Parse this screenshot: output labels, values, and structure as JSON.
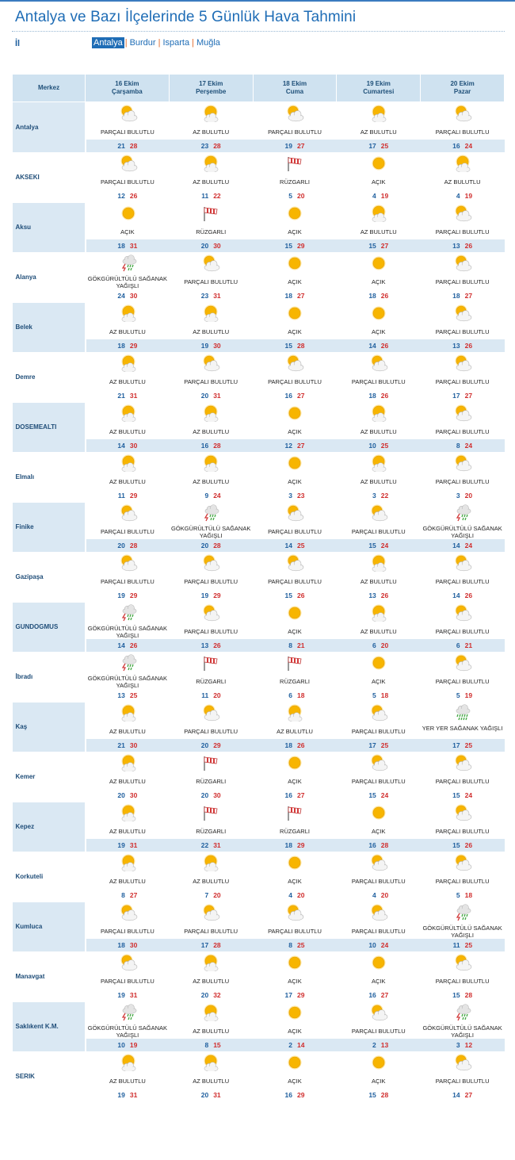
{
  "page_title": "Antalya ve Bazı İlçelerinde 5 Günlük Hava Tahmini",
  "il_label": "İl",
  "provinces": [
    {
      "label": "Antalya",
      "active": true
    },
    {
      "label": "Burdur",
      "active": false
    },
    {
      "label": "Isparta",
      "active": false
    },
    {
      "label": "Muğla",
      "active": false
    }
  ],
  "table_header": {
    "merkez": "Merkez",
    "days": [
      {
        "date": "16 Ekim",
        "weekday": "Çarşamba"
      },
      {
        "date": "17 Ekim",
        "weekday": "Perşembe"
      },
      {
        "date": "18 Ekim",
        "weekday": "Cuma"
      },
      {
        "date": "19 Ekim",
        "weekday": "Cumartesi"
      },
      {
        "date": "20 Ekim",
        "weekday": "Pazar"
      }
    ]
  },
  "colors": {
    "accent": "#1f6db6",
    "min_temp": "#1f5f9e",
    "max_temp": "#d02d2d",
    "row_shade": "#dae8f3",
    "header": "#cfe2f0"
  },
  "rows": [
    {
      "name": "Antalya",
      "days": [
        {
          "icon": "partly-cloudy-icon",
          "desc": "PARÇALI BULUTLU",
          "min": "21",
          "max": "28"
        },
        {
          "icon": "few-clouds-icon",
          "desc": "AZ BULUTLU",
          "min": "23",
          "max": "28"
        },
        {
          "icon": "partly-cloudy-icon",
          "desc": "PARÇALI BULUTLU",
          "min": "19",
          "max": "27"
        },
        {
          "icon": "few-clouds-icon",
          "desc": "AZ BULUTLU",
          "min": "17",
          "max": "25"
        },
        {
          "icon": "partly-cloudy-icon",
          "desc": "PARÇALI BULUTLU",
          "min": "16",
          "max": "24"
        }
      ]
    },
    {
      "name": "AKSEKI",
      "days": [
        {
          "icon": "partly-cloudy-icon",
          "desc": "PARÇALI BULUTLU",
          "min": "12",
          "max": "26"
        },
        {
          "icon": "few-clouds-icon",
          "desc": "AZ BULUTLU",
          "min": "11",
          "max": "22"
        },
        {
          "icon": "windsock-icon",
          "desc": "RÜZGARLI",
          "min": "5",
          "max": "20"
        },
        {
          "icon": "sun-icon",
          "desc": "AÇIK",
          "min": "4",
          "max": "19"
        },
        {
          "icon": "few-clouds-icon",
          "desc": "AZ BULUTLU",
          "min": "4",
          "max": "19"
        }
      ]
    },
    {
      "name": "Aksu",
      "days": [
        {
          "icon": "sun-icon",
          "desc": "AÇIK",
          "min": "18",
          "max": "31"
        },
        {
          "icon": "windsock-icon",
          "desc": "RÜZGARLI",
          "min": "20",
          "max": "30"
        },
        {
          "icon": "sun-icon",
          "desc": "AÇIK",
          "min": "15",
          "max": "29"
        },
        {
          "icon": "few-clouds-icon",
          "desc": "AZ BULUTLU",
          "min": "15",
          "max": "27"
        },
        {
          "icon": "partly-cloudy-icon",
          "desc": "PARÇALI BULUTLU",
          "min": "13",
          "max": "26"
        }
      ]
    },
    {
      "name": "Alanya",
      "days": [
        {
          "icon": "thunder-shower-icon",
          "desc": "GÖKGÜRÜLTÜLÜ SAĞANAK YAĞIŞLI",
          "min": "24",
          "max": "30"
        },
        {
          "icon": "partly-cloudy-icon",
          "desc": "PARÇALI BULUTLU",
          "min": "23",
          "max": "31"
        },
        {
          "icon": "sun-icon",
          "desc": "AÇIK",
          "min": "18",
          "max": "27"
        },
        {
          "icon": "sun-icon",
          "desc": "AÇIK",
          "min": "18",
          "max": "26"
        },
        {
          "icon": "partly-cloudy-icon",
          "desc": "PARÇALI BULUTLU",
          "min": "18",
          "max": "27"
        }
      ]
    },
    {
      "name": "Belek",
      "days": [
        {
          "icon": "few-clouds-icon",
          "desc": "AZ BULUTLU",
          "min": "18",
          "max": "29"
        },
        {
          "icon": "few-clouds-icon",
          "desc": "AZ BULUTLU",
          "min": "19",
          "max": "30"
        },
        {
          "icon": "sun-icon",
          "desc": "AÇIK",
          "min": "15",
          "max": "28"
        },
        {
          "icon": "sun-icon",
          "desc": "AÇIK",
          "min": "14",
          "max": "26"
        },
        {
          "icon": "partly-cloudy-icon",
          "desc": "PARÇALI BULUTLU",
          "min": "13",
          "max": "26"
        }
      ]
    },
    {
      "name": "Demre",
      "days": [
        {
          "icon": "few-clouds-icon",
          "desc": "AZ BULUTLU",
          "min": "21",
          "max": "31"
        },
        {
          "icon": "partly-cloudy-icon",
          "desc": "PARÇALI BULUTLU",
          "min": "20",
          "max": "31"
        },
        {
          "icon": "partly-cloudy-icon",
          "desc": "PARÇALI BULUTLU",
          "min": "16",
          "max": "27"
        },
        {
          "icon": "partly-cloudy-icon",
          "desc": "PARÇALI BULUTLU",
          "min": "18",
          "max": "26"
        },
        {
          "icon": "partly-cloudy-icon",
          "desc": "PARÇALI BULUTLU",
          "min": "17",
          "max": "27"
        }
      ]
    },
    {
      "name": "DOSEMEALTI",
      "days": [
        {
          "icon": "few-clouds-icon",
          "desc": "AZ BULUTLU",
          "min": "14",
          "max": "30"
        },
        {
          "icon": "few-clouds-icon",
          "desc": "AZ BULUTLU",
          "min": "16",
          "max": "28"
        },
        {
          "icon": "sun-icon",
          "desc": "AÇIK",
          "min": "12",
          "max": "27"
        },
        {
          "icon": "few-clouds-icon",
          "desc": "AZ BULUTLU",
          "min": "10",
          "max": "25"
        },
        {
          "icon": "partly-cloudy-icon",
          "desc": "PARÇALI BULUTLU",
          "min": "8",
          "max": "24"
        }
      ]
    },
    {
      "name": "Elmalı",
      "days": [
        {
          "icon": "few-clouds-icon",
          "desc": "AZ BULUTLU",
          "min": "11",
          "max": "29"
        },
        {
          "icon": "few-clouds-icon",
          "desc": "AZ BULUTLU",
          "min": "9",
          "max": "24"
        },
        {
          "icon": "sun-icon",
          "desc": "AÇIK",
          "min": "3",
          "max": "23"
        },
        {
          "icon": "few-clouds-icon",
          "desc": "AZ BULUTLU",
          "min": "3",
          "max": "22"
        },
        {
          "icon": "partly-cloudy-icon",
          "desc": "PARÇALI BULUTLU",
          "min": "3",
          "max": "20"
        }
      ]
    },
    {
      "name": "Finike",
      "days": [
        {
          "icon": "partly-cloudy-icon",
          "desc": "PARÇALI BULUTLU",
          "min": "20",
          "max": "28"
        },
        {
          "icon": "thunder-shower-icon",
          "desc": "GÖKGÜRÜLTÜLÜ SAĞANAK YAĞIŞLI",
          "min": "20",
          "max": "28"
        },
        {
          "icon": "partly-cloudy-icon",
          "desc": "PARÇALI BULUTLU",
          "min": "14",
          "max": "25"
        },
        {
          "icon": "partly-cloudy-icon",
          "desc": "PARÇALI BULUTLU",
          "min": "15",
          "max": "24"
        },
        {
          "icon": "thunder-shower-icon",
          "desc": "GÖKGÜRÜLTÜLÜ SAĞANAK YAĞIŞLI",
          "min": "14",
          "max": "24"
        }
      ]
    },
    {
      "name": "Gazipaşa",
      "days": [
        {
          "icon": "partly-cloudy-icon",
          "desc": "PARÇALI BULUTLU",
          "min": "19",
          "max": "29"
        },
        {
          "icon": "partly-cloudy-icon",
          "desc": "PARÇALI BULUTLU",
          "min": "19",
          "max": "29"
        },
        {
          "icon": "partly-cloudy-icon",
          "desc": "PARÇALI BULUTLU",
          "min": "15",
          "max": "26"
        },
        {
          "icon": "few-clouds-icon",
          "desc": "AZ BULUTLU",
          "min": "13",
          "max": "26"
        },
        {
          "icon": "partly-cloudy-icon",
          "desc": "PARÇALI BULUTLU",
          "min": "14",
          "max": "26"
        }
      ]
    },
    {
      "name": "GUNDOGMUS",
      "days": [
        {
          "icon": "thunder-shower-icon",
          "desc": "GÖKGÜRÜLTÜLÜ SAĞANAK YAĞIŞLI",
          "min": "14",
          "max": "26"
        },
        {
          "icon": "partly-cloudy-icon",
          "desc": "PARÇALI BULUTLU",
          "min": "13",
          "max": "26"
        },
        {
          "icon": "sun-icon",
          "desc": "AÇIK",
          "min": "8",
          "max": "21"
        },
        {
          "icon": "few-clouds-icon",
          "desc": "AZ BULUTLU",
          "min": "6",
          "max": "20"
        },
        {
          "icon": "partly-cloudy-icon",
          "desc": "PARÇALI BULUTLU",
          "min": "6",
          "max": "21"
        }
      ]
    },
    {
      "name": "İbradı",
      "days": [
        {
          "icon": "thunder-shower-icon",
          "desc": "GÖKGÜRÜLTÜLÜ SAĞANAK YAĞIŞLI",
          "min": "13",
          "max": "25"
        },
        {
          "icon": "windsock-icon",
          "desc": "RÜZGARLI",
          "min": "11",
          "max": "20"
        },
        {
          "icon": "windsock-icon",
          "desc": "RÜZGARLI",
          "min": "6",
          "max": "18"
        },
        {
          "icon": "sun-icon",
          "desc": "AÇIK",
          "min": "5",
          "max": "18"
        },
        {
          "icon": "partly-cloudy-icon",
          "desc": "PARÇALI BULUTLU",
          "min": "5",
          "max": "19"
        }
      ]
    },
    {
      "name": "Kaş",
      "days": [
        {
          "icon": "few-clouds-icon",
          "desc": "AZ BULUTLU",
          "min": "21",
          "max": "30"
        },
        {
          "icon": "partly-cloudy-icon",
          "desc": "PARÇALI BULUTLU",
          "min": "20",
          "max": "29"
        },
        {
          "icon": "few-clouds-icon",
          "desc": "AZ BULUTLU",
          "min": "18",
          "max": "26"
        },
        {
          "icon": "partly-cloudy-icon",
          "desc": "PARÇALI BULUTLU",
          "min": "17",
          "max": "25"
        },
        {
          "icon": "rain-shower-icon",
          "desc": "YER YER SAĞANAK YAĞIŞLI",
          "min": "17",
          "max": "25"
        }
      ]
    },
    {
      "name": "Kemer",
      "days": [
        {
          "icon": "few-clouds-icon",
          "desc": "AZ BULUTLU",
          "min": "20",
          "max": "30"
        },
        {
          "icon": "windsock-icon",
          "desc": "RÜZGARLI",
          "min": "20",
          "max": "30"
        },
        {
          "icon": "sun-icon",
          "desc": "AÇIK",
          "min": "16",
          "max": "27"
        },
        {
          "icon": "partly-cloudy-icon",
          "desc": "PARÇALI BULUTLU",
          "min": "15",
          "max": "24"
        },
        {
          "icon": "partly-cloudy-icon",
          "desc": "PARÇALI BULUTLU",
          "min": "15",
          "max": "24"
        }
      ]
    },
    {
      "name": "Kepez",
      "days": [
        {
          "icon": "few-clouds-icon",
          "desc": "AZ BULUTLU",
          "min": "19",
          "max": "31"
        },
        {
          "icon": "windsock-icon",
          "desc": "RÜZGARLI",
          "min": "22",
          "max": "31"
        },
        {
          "icon": "windsock-icon",
          "desc": "RÜZGARLI",
          "min": "18",
          "max": "29"
        },
        {
          "icon": "sun-icon",
          "desc": "AÇIK",
          "min": "16",
          "max": "28"
        },
        {
          "icon": "partly-cloudy-icon",
          "desc": "PARÇALI BULUTLU",
          "min": "15",
          "max": "26"
        }
      ]
    },
    {
      "name": "Korkuteli",
      "days": [
        {
          "icon": "few-clouds-icon",
          "desc": "AZ BULUTLU",
          "min": "8",
          "max": "27"
        },
        {
          "icon": "few-clouds-icon",
          "desc": "AZ BULUTLU",
          "min": "7",
          "max": "20"
        },
        {
          "icon": "sun-icon",
          "desc": "AÇIK",
          "min": "4",
          "max": "20"
        },
        {
          "icon": "partly-cloudy-icon",
          "desc": "PARÇALI BULUTLU",
          "min": "4",
          "max": "20"
        },
        {
          "icon": "partly-cloudy-icon",
          "desc": "PARÇALI BULUTLU",
          "min": "5",
          "max": "18"
        }
      ]
    },
    {
      "name": "Kumluca",
      "days": [
        {
          "icon": "partly-cloudy-icon",
          "desc": "PARÇALI BULUTLU",
          "min": "18",
          "max": "30"
        },
        {
          "icon": "partly-cloudy-icon",
          "desc": "PARÇALI BULUTLU",
          "min": "17",
          "max": "28"
        },
        {
          "icon": "partly-cloudy-icon",
          "desc": "PARÇALI BULUTLU",
          "min": "8",
          "max": "25"
        },
        {
          "icon": "partly-cloudy-icon",
          "desc": "PARÇALI BULUTLU",
          "min": "10",
          "max": "24"
        },
        {
          "icon": "thunder-shower-icon",
          "desc": "GÖKGÜRÜLTÜLÜ SAĞANAK YAĞIŞLI",
          "min": "11",
          "max": "25"
        }
      ]
    },
    {
      "name": "Manavgat",
      "days": [
        {
          "icon": "partly-cloudy-icon",
          "desc": "PARÇALI BULUTLU",
          "min": "19",
          "max": "31"
        },
        {
          "icon": "few-clouds-icon",
          "desc": "AZ BULUTLU",
          "min": "20",
          "max": "32"
        },
        {
          "icon": "sun-icon",
          "desc": "AÇIK",
          "min": "17",
          "max": "29"
        },
        {
          "icon": "sun-icon",
          "desc": "AÇIK",
          "min": "16",
          "max": "27"
        },
        {
          "icon": "partly-cloudy-icon",
          "desc": "PARÇALI BULUTLU",
          "min": "15",
          "max": "28"
        }
      ]
    },
    {
      "name": "Saklıkent K.M.",
      "days": [
        {
          "icon": "thunder-shower-icon",
          "desc": "GÖKGÜRÜLTÜLÜ SAĞANAK YAĞIŞLI",
          "min": "10",
          "max": "19"
        },
        {
          "icon": "few-clouds-icon",
          "desc": "AZ BULUTLU",
          "min": "8",
          "max": "15"
        },
        {
          "icon": "sun-icon",
          "desc": "AÇIK",
          "min": "2",
          "max": "14"
        },
        {
          "icon": "partly-cloudy-icon",
          "desc": "PARÇALI BULUTLU",
          "min": "2",
          "max": "13"
        },
        {
          "icon": "thunder-shower-icon",
          "desc": "GÖKGÜRÜLTÜLÜ SAĞANAK YAĞIŞLI",
          "min": "3",
          "max": "12"
        }
      ]
    },
    {
      "name": "SERIK",
      "days": [
        {
          "icon": "few-clouds-icon",
          "desc": "AZ BULUTLU",
          "min": "19",
          "max": "31"
        },
        {
          "icon": "few-clouds-icon",
          "desc": "AZ BULUTLU",
          "min": "20",
          "max": "31"
        },
        {
          "icon": "sun-icon",
          "desc": "AÇIK",
          "min": "16",
          "max": "29"
        },
        {
          "icon": "sun-icon",
          "desc": "AÇIK",
          "min": "15",
          "max": "28"
        },
        {
          "icon": "partly-cloudy-icon",
          "desc": "PARÇALI BULUTLU",
          "min": "14",
          "max": "27"
        }
      ]
    }
  ]
}
